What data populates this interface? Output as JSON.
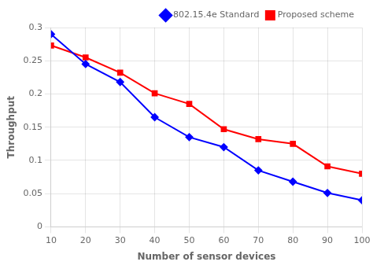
{
  "chart_data": {
    "type": "line",
    "x": [
      10,
      20,
      30,
      40,
      50,
      60,
      70,
      80,
      90,
      100
    ],
    "series": [
      {
        "name": "802.15.4e Standard",
        "color": "#0000ff",
        "marker": "diamond",
        "values": [
          0.29,
          0.245,
          0.218,
          0.165,
          0.135,
          0.12,
          0.085,
          0.068,
          0.051,
          0.04
        ]
      },
      {
        "name": "Proposed scheme",
        "color": "#ff0000",
        "marker": "square",
        "values": [
          0.273,
          0.255,
          0.232,
          0.201,
          0.185,
          0.147,
          0.132,
          0.125,
          0.091,
          0.08
        ]
      }
    ],
    "xlabel": "Number of sensor devices",
    "ylabel": "Throughput",
    "xlim": [
      10,
      100
    ],
    "ylim": [
      0,
      0.3
    ],
    "xticks": [
      10,
      20,
      30,
      40,
      50,
      60,
      70,
      80,
      90,
      100
    ],
    "yticks": [
      0,
      0.05,
      0.1,
      0.15,
      0.2,
      0.25,
      0.3
    ],
    "grid": true,
    "legend": "upper right"
  }
}
